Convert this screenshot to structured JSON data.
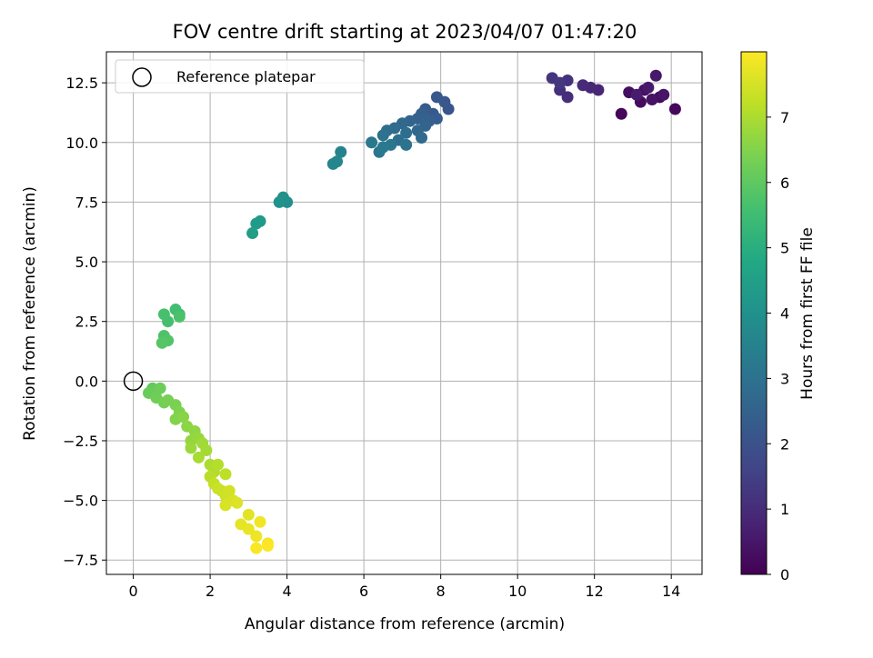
{
  "chart_data": {
    "type": "scatter",
    "title": "FOV centre drift starting at 2023/04/07 01:47:20",
    "xlabel": "Angular distance from reference (arcmin)",
    "ylabel": "Rotation from reference (arcmin)",
    "colorbar_label": "Hours from first FF file",
    "xlim": [
      -0.7,
      14.8
    ],
    "ylim": [
      -8.1,
      13.8
    ],
    "clim": [
      0,
      8
    ],
    "colormap": "viridis",
    "grid": true,
    "legend_position": "top-left",
    "x_ticks": [
      "0",
      "2",
      "4",
      "6",
      "8",
      "10",
      "12",
      "14"
    ],
    "y_ticks": [
      "−7.5",
      "−5.0",
      "−2.5",
      "0.0",
      "2.5",
      "5.0",
      "7.5",
      "10.0",
      "12.5"
    ],
    "colorbar_ticks": [
      "0",
      "1",
      "2",
      "3",
      "4",
      "5",
      "6",
      "7"
    ],
    "legend": [
      {
        "label": "Reference platepar",
        "marker": "open-circle"
      }
    ],
    "reference_point": {
      "x": 0,
      "y": 0
    },
    "points": [
      {
        "x": 12.7,
        "y": 11.2,
        "h": 0.1
      },
      {
        "x": 14.1,
        "y": 11.4,
        "h": 0.15
      },
      {
        "x": 13.7,
        "y": 11.9,
        "h": 0.2
      },
      {
        "x": 13.2,
        "y": 11.7,
        "h": 0.25
      },
      {
        "x": 12.9,
        "y": 12.1,
        "h": 0.3
      },
      {
        "x": 13.3,
        "y": 12.2,
        "h": 0.35
      },
      {
        "x": 13.5,
        "y": 11.8,
        "h": 0.4
      },
      {
        "x": 13.8,
        "y": 12.0,
        "h": 0.45
      },
      {
        "x": 13.6,
        "y": 12.8,
        "h": 0.5
      },
      {
        "x": 13.4,
        "y": 12.3,
        "h": 0.55
      },
      {
        "x": 13.1,
        "y": 12.0,
        "h": 0.6
      },
      {
        "x": 12.1,
        "y": 12.2,
        "h": 0.85
      },
      {
        "x": 11.9,
        "y": 12.3,
        "h": 0.9
      },
      {
        "x": 11.7,
        "y": 12.4,
        "h": 0.95
      },
      {
        "x": 11.3,
        "y": 11.9,
        "h": 1.05
      },
      {
        "x": 11.1,
        "y": 12.2,
        "h": 1.1
      },
      {
        "x": 11.3,
        "y": 12.6,
        "h": 1.15
      },
      {
        "x": 10.9,
        "y": 12.7,
        "h": 1.2
      },
      {
        "x": 11.1,
        "y": 12.5,
        "h": 1.25
      },
      {
        "x": 8.2,
        "y": 11.4,
        "h": 2.1
      },
      {
        "x": 8.1,
        "y": 11.7,
        "h": 2.15
      },
      {
        "x": 7.9,
        "y": 11.9,
        "h": 2.2
      },
      {
        "x": 7.8,
        "y": 11.2,
        "h": 2.25
      },
      {
        "x": 7.6,
        "y": 11.4,
        "h": 2.3
      },
      {
        "x": 7.9,
        "y": 11.0,
        "h": 2.35
      },
      {
        "x": 7.5,
        "y": 11.2,
        "h": 2.4
      },
      {
        "x": 7.7,
        "y": 10.9,
        "h": 2.45
      },
      {
        "x": 7.4,
        "y": 11.0,
        "h": 2.5
      },
      {
        "x": 7.6,
        "y": 10.7,
        "h": 2.55
      },
      {
        "x": 7.2,
        "y": 10.9,
        "h": 2.6
      },
      {
        "x": 7.4,
        "y": 10.5,
        "h": 2.65
      },
      {
        "x": 7.0,
        "y": 10.8,
        "h": 2.7
      },
      {
        "x": 7.5,
        "y": 10.2,
        "h": 2.75
      },
      {
        "x": 6.8,
        "y": 10.6,
        "h": 2.8
      },
      {
        "x": 7.1,
        "y": 10.4,
        "h": 2.85
      },
      {
        "x": 6.6,
        "y": 10.5,
        "h": 2.9
      },
      {
        "x": 6.9,
        "y": 10.1,
        "h": 2.95
      },
      {
        "x": 6.5,
        "y": 10.3,
        "h": 3.0
      },
      {
        "x": 7.1,
        "y": 9.9,
        "h": 3.05
      },
      {
        "x": 6.7,
        "y": 9.9,
        "h": 3.1
      },
      {
        "x": 6.4,
        "y": 9.6,
        "h": 3.15
      },
      {
        "x": 6.2,
        "y": 10.0,
        "h": 3.2
      },
      {
        "x": 6.5,
        "y": 9.8,
        "h": 3.25
      },
      {
        "x": 5.4,
        "y": 9.6,
        "h": 3.55
      },
      {
        "x": 5.3,
        "y": 9.2,
        "h": 3.6
      },
      {
        "x": 5.2,
        "y": 9.1,
        "h": 3.65
      },
      {
        "x": 4.0,
        "y": 7.5,
        "h": 3.95
      },
      {
        "x": 3.9,
        "y": 7.7,
        "h": 4.0
      },
      {
        "x": 3.8,
        "y": 7.5,
        "h": 4.05
      },
      {
        "x": 3.3,
        "y": 6.7,
        "h": 4.3
      },
      {
        "x": 3.2,
        "y": 6.6,
        "h": 4.35
      },
      {
        "x": 3.1,
        "y": 6.2,
        "h": 4.4
      },
      {
        "x": 1.2,
        "y": 2.8,
        "h": 5.5
      },
      {
        "x": 1.1,
        "y": 3.0,
        "h": 5.55
      },
      {
        "x": 0.9,
        "y": 2.5,
        "h": 5.6
      },
      {
        "x": 0.8,
        "y": 2.8,
        "h": 5.65
      },
      {
        "x": 1.2,
        "y": 2.7,
        "h": 5.7
      },
      {
        "x": 0.8,
        "y": 1.9,
        "h": 5.75
      },
      {
        "x": 0.9,
        "y": 1.7,
        "h": 5.8
      },
      {
        "x": 0.75,
        "y": 1.6,
        "h": 5.85
      },
      {
        "x": 0.5,
        "y": -0.3,
        "h": 6.05
      },
      {
        "x": 0.6,
        "y": -0.4,
        "h": 6.1
      },
      {
        "x": 0.4,
        "y": -0.5,
        "h": 6.15
      },
      {
        "x": 0.7,
        "y": -0.3,
        "h": 6.2
      },
      {
        "x": 0.6,
        "y": -0.7,
        "h": 6.25
      },
      {
        "x": 0.8,
        "y": -0.9,
        "h": 6.3
      },
      {
        "x": 0.9,
        "y": -0.8,
        "h": 6.35
      },
      {
        "x": 1.1,
        "y": -1.0,
        "h": 6.4
      },
      {
        "x": 1.2,
        "y": -1.3,
        "h": 6.45
      },
      {
        "x": 1.1,
        "y": -1.6,
        "h": 6.5
      },
      {
        "x": 1.3,
        "y": -1.5,
        "h": 6.55
      },
      {
        "x": 1.4,
        "y": -1.9,
        "h": 6.6
      },
      {
        "x": 1.6,
        "y": -2.1,
        "h": 6.65
      },
      {
        "x": 1.5,
        "y": -2.5,
        "h": 6.7
      },
      {
        "x": 1.7,
        "y": -2.4,
        "h": 6.75
      },
      {
        "x": 1.5,
        "y": -2.8,
        "h": 6.8
      },
      {
        "x": 1.8,
        "y": -2.6,
        "h": 6.85
      },
      {
        "x": 1.9,
        "y": -2.9,
        "h": 6.9
      },
      {
        "x": 1.7,
        "y": -3.2,
        "h": 6.95
      },
      {
        "x": 2.0,
        "y": -3.5,
        "h": 7.0
      },
      {
        "x": 2.1,
        "y": -3.8,
        "h": 7.05
      },
      {
        "x": 2.2,
        "y": -3.5,
        "h": 7.1
      },
      {
        "x": 2.0,
        "y": -4.0,
        "h": 7.15
      },
      {
        "x": 2.4,
        "y": -3.9,
        "h": 7.2
      },
      {
        "x": 2.1,
        "y": -4.3,
        "h": 7.25
      },
      {
        "x": 2.3,
        "y": -4.6,
        "h": 7.3
      },
      {
        "x": 2.2,
        "y": -4.5,
        "h": 7.35
      },
      {
        "x": 2.4,
        "y": -4.8,
        "h": 7.4
      },
      {
        "x": 2.5,
        "y": -4.6,
        "h": 7.45
      },
      {
        "x": 2.6,
        "y": -5.0,
        "h": 7.5
      },
      {
        "x": 2.4,
        "y": -5.2,
        "h": 7.55
      },
      {
        "x": 2.7,
        "y": -5.1,
        "h": 7.6
      },
      {
        "x": 3.0,
        "y": -5.6,
        "h": 7.65
      },
      {
        "x": 2.8,
        "y": -6.0,
        "h": 7.7
      },
      {
        "x": 3.0,
        "y": -6.2,
        "h": 7.75
      },
      {
        "x": 3.2,
        "y": -6.5,
        "h": 7.8
      },
      {
        "x": 3.3,
        "y": -5.9,
        "h": 7.85
      },
      {
        "x": 3.5,
        "y": -6.8,
        "h": 7.9
      },
      {
        "x": 3.2,
        "y": -7.0,
        "h": 7.95
      },
      {
        "x": 3.5,
        "y": -6.9,
        "h": 7.98
      }
    ]
  }
}
